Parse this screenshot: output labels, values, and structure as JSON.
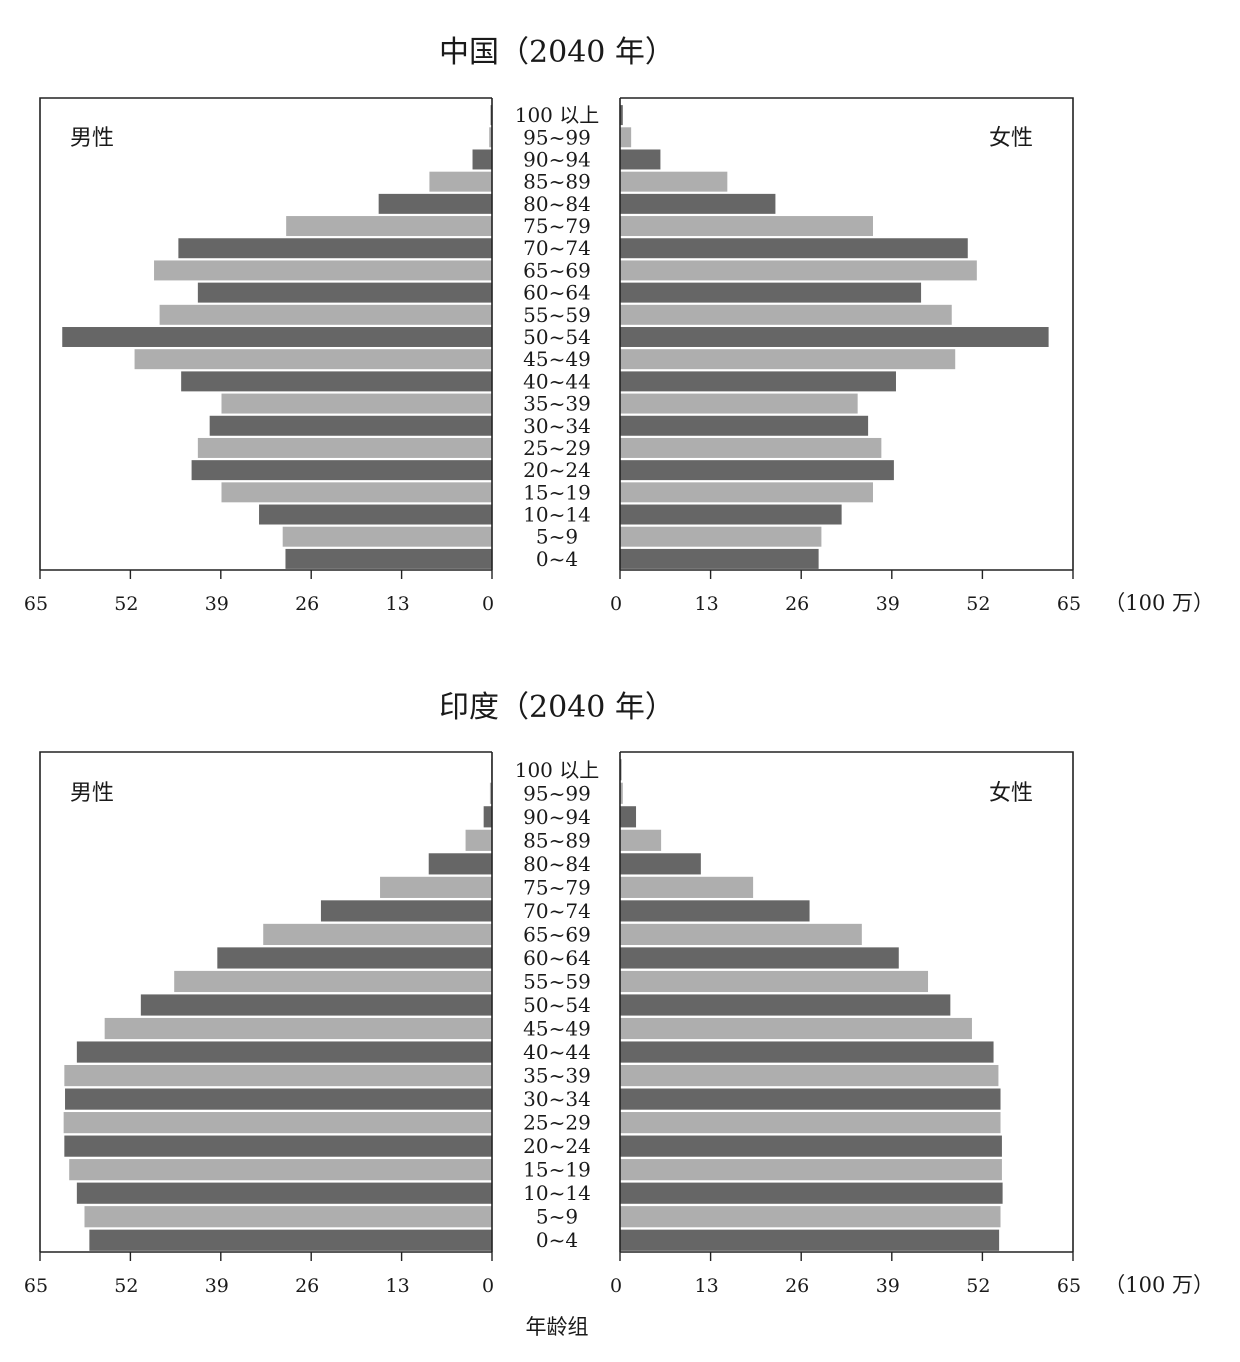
{
  "chart_data": [
    {
      "type": "bar",
      "orientation": "horizontal-population-pyramid",
      "title": "中国（2040 年）",
      "categories": [
        "100 以上",
        "95~99",
        "90~94",
        "85~89",
        "80~84",
        "75~79",
        "70~74",
        "65~69",
        "60~64",
        "55~59",
        "50~54",
        "45~49",
        "40~44",
        "35~39",
        "30~34",
        "25~29",
        "20~24",
        "15~19",
        "10~14",
        "5~9",
        "0~4"
      ],
      "series": [
        {
          "name": "男性",
          "values": [
            0.2,
            0.4,
            2.8,
            9.0,
            16.3,
            29.6,
            45.1,
            48.6,
            42.3,
            47.8,
            61.8,
            51.4,
            44.7,
            38.9,
            40.6,
            42.3,
            43.2,
            38.9,
            33.5,
            30.1,
            29.7
          ]
        },
        {
          "name": "女性",
          "values": [
            0.4,
            1.6,
            5.8,
            15.4,
            22.3,
            36.3,
            49.9,
            51.2,
            43.2,
            47.6,
            61.5,
            48.1,
            39.6,
            34.1,
            35.6,
            37.5,
            39.3,
            36.3,
            31.8,
            28.9,
            28.5
          ]
        }
      ],
      "sex_labels": {
        "male": "男性",
        "female": "女性"
      },
      "xlim": [
        0,
        65
      ],
      "xticks_left": [
        "65",
        "52",
        "39",
        "26",
        "13",
        "0"
      ],
      "xticks_right": [
        "0",
        "13",
        "26",
        "39",
        "52",
        "65"
      ],
      "unit": "（100 万）",
      "colors": {
        "dark": "#666666",
        "light": "#aeaeae"
      }
    },
    {
      "type": "bar",
      "orientation": "horizontal-population-pyramid",
      "title": "印度（2040 年）",
      "categories": [
        "100 以上",
        "95~99",
        "90~94",
        "85~89",
        "80~84",
        "75~79",
        "70~74",
        "65~69",
        "60~64",
        "55~59",
        "50~54",
        "45~49",
        "40~44",
        "35~39",
        "30~34",
        "25~29",
        "20~24",
        "15~19",
        "10~14",
        "5~9",
        "0~4"
      ],
      "series": [
        {
          "name": "男性",
          "values": [
            0.1,
            0.3,
            1.2,
            3.8,
            9.1,
            16.1,
            24.6,
            32.9,
            39.5,
            45.7,
            50.5,
            55.7,
            59.7,
            61.5,
            61.4,
            61.6,
            61.5,
            60.8,
            59.7,
            58.6,
            57.9
          ]
        },
        {
          "name": "女性",
          "values": [
            0.2,
            0.4,
            2.3,
            5.9,
            11.6,
            19.1,
            27.2,
            34.7,
            40.0,
            44.2,
            47.4,
            50.5,
            53.6,
            54.3,
            54.6,
            54.6,
            54.8,
            54.8,
            54.9,
            54.6,
            54.4
          ]
        }
      ],
      "sex_labels": {
        "male": "男性",
        "female": "女性"
      },
      "xlim": [
        0,
        65
      ],
      "xticks_left": [
        "65",
        "52",
        "39",
        "26",
        "13",
        "0"
      ],
      "xticks_right": [
        "0",
        "13",
        "26",
        "39",
        "52",
        "65"
      ],
      "unit": "（100 万）",
      "xlabel": "年龄组",
      "colors": {
        "dark": "#666666",
        "light": "#aeaeae"
      }
    }
  ]
}
